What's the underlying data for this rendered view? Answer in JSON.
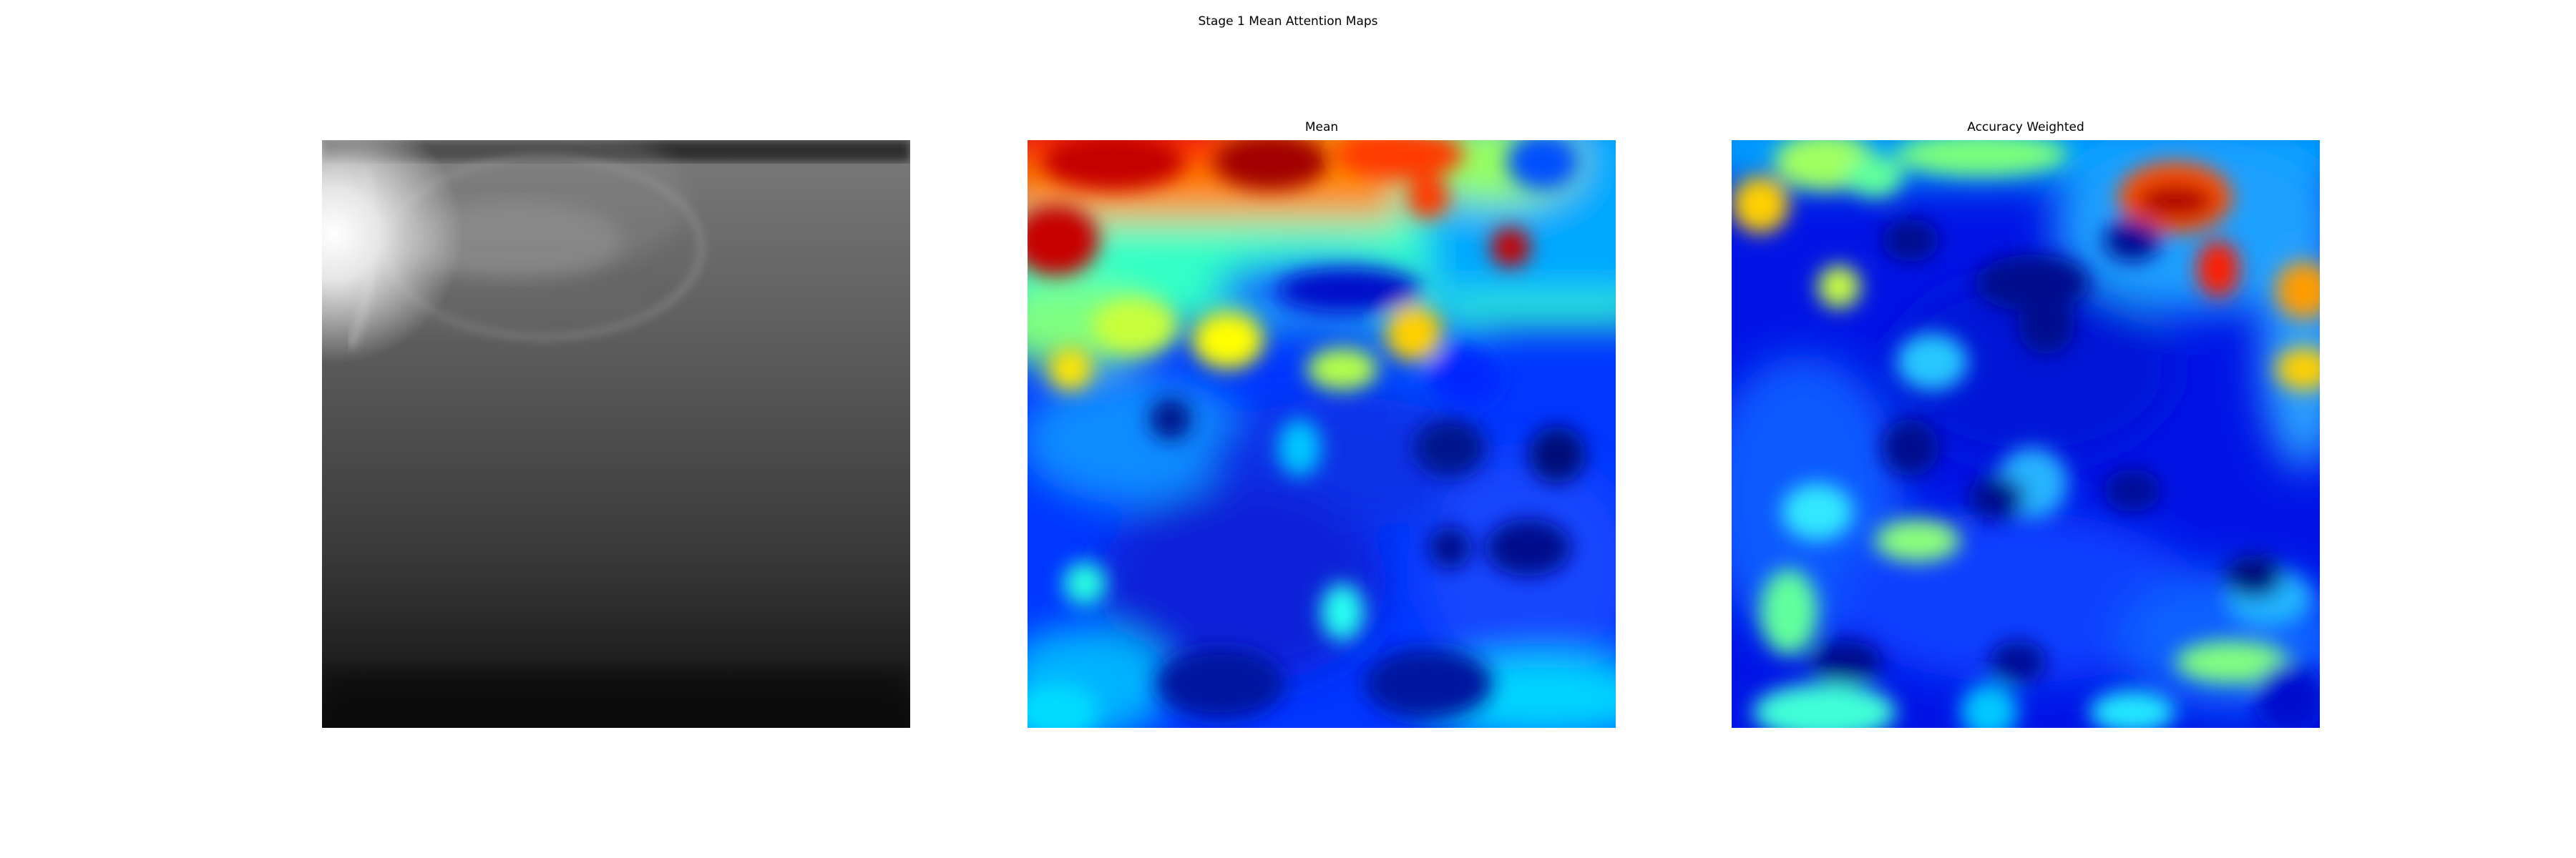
{
  "figure": {
    "suptitle": "Stage 1 Mean Attention Maps",
    "panels": [
      {
        "title": "",
        "kind": "grayscale-image"
      },
      {
        "title": "Mean",
        "kind": "heatmap",
        "colormap": "jet"
      },
      {
        "title": "Accuracy Weighted",
        "kind": "heatmap",
        "colormap": "jet"
      }
    ]
  },
  "colors": {
    "jet_low": "#00007f",
    "jet_mid": "#7fff7f",
    "jet_high": "#7f0000"
  }
}
